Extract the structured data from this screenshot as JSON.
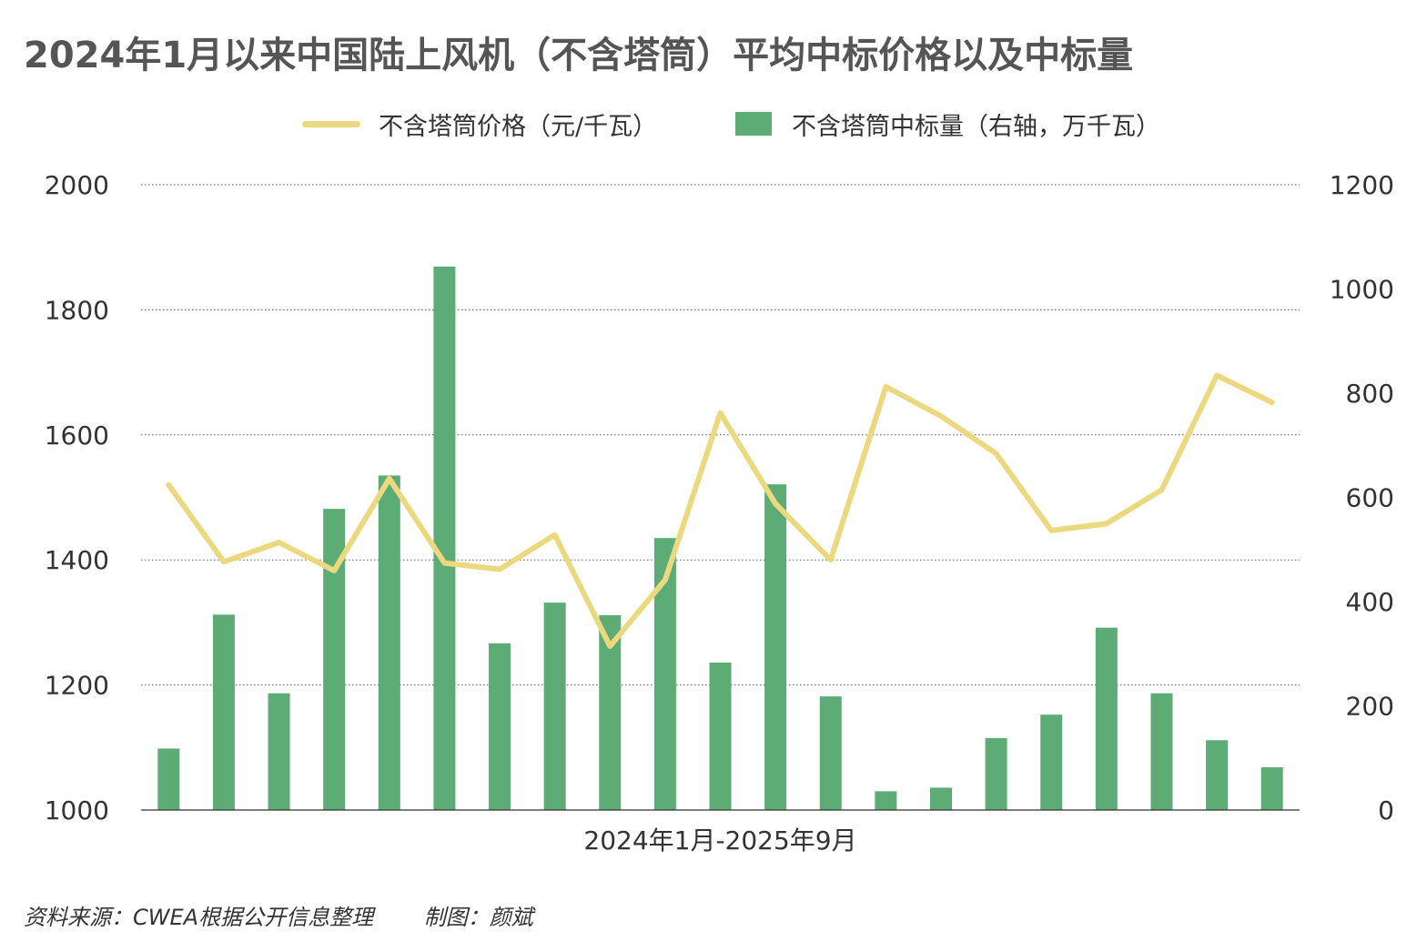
{
  "title": "2024年1月以来中国陆上风机（不含塔筒）平均中标价格以及中标量",
  "legend": {
    "line_label": "不含塔筒价格（元/千瓦）",
    "bar_label": "不含塔筒中标量（右轴，万千瓦）"
  },
  "footer": {
    "source": "资料来源：CWEA根据公开信息整理",
    "author": "制图：颜斌"
  },
  "colors": {
    "bar": "#5dab75",
    "line": "#ecd97f",
    "grid": "#555555",
    "axis": "#333333"
  },
  "chart_data": {
    "type": "bar",
    "xlabel": "2024年1月-2025年9月",
    "x": [
      "2024-01",
      "2024-02",
      "2024-03",
      "2024-04",
      "2024-05",
      "2024-06",
      "2024-07",
      "2024-08",
      "2024-09",
      "2024-10",
      "2024-11",
      "2024-12",
      "2025-01",
      "2025-02",
      "2025-03",
      "2025-04",
      "2025-05",
      "2025-06",
      "2025-07",
      "2025-08",
      "2025-09"
    ],
    "left_axis": {
      "range": [
        1000,
        2000
      ],
      "ticks": [
        1000,
        1200,
        1400,
        1600,
        1800,
        2000
      ]
    },
    "right_axis": {
      "range": [
        0,
        1200
      ],
      "ticks": [
        0,
        200,
        400,
        600,
        800,
        1000,
        1200
      ]
    },
    "series": [
      {
        "name": "不含塔筒价格（元/千瓦）",
        "type": "line",
        "axis": "left",
        "values": [
          1520,
          1397,
          1428,
          1383,
          1530,
          1395,
          1385,
          1440,
          1262,
          1368,
          1635,
          1490,
          1400,
          1677,
          1630,
          1570,
          1447,
          1458,
          1512,
          1695,
          1652
        ]
      },
      {
        "name": "不含塔筒中标量（右轴，万千瓦）",
        "type": "bar",
        "axis": "right",
        "values": [
          118,
          375,
          224,
          578,
          642,
          1043,
          320,
          398,
          374,
          522,
          283,
          625,
          218,
          36,
          43,
          138,
          183,
          350,
          224,
          134,
          82
        ]
      }
    ],
    "grid": true,
    "grid_style": "dotted horizontal"
  }
}
